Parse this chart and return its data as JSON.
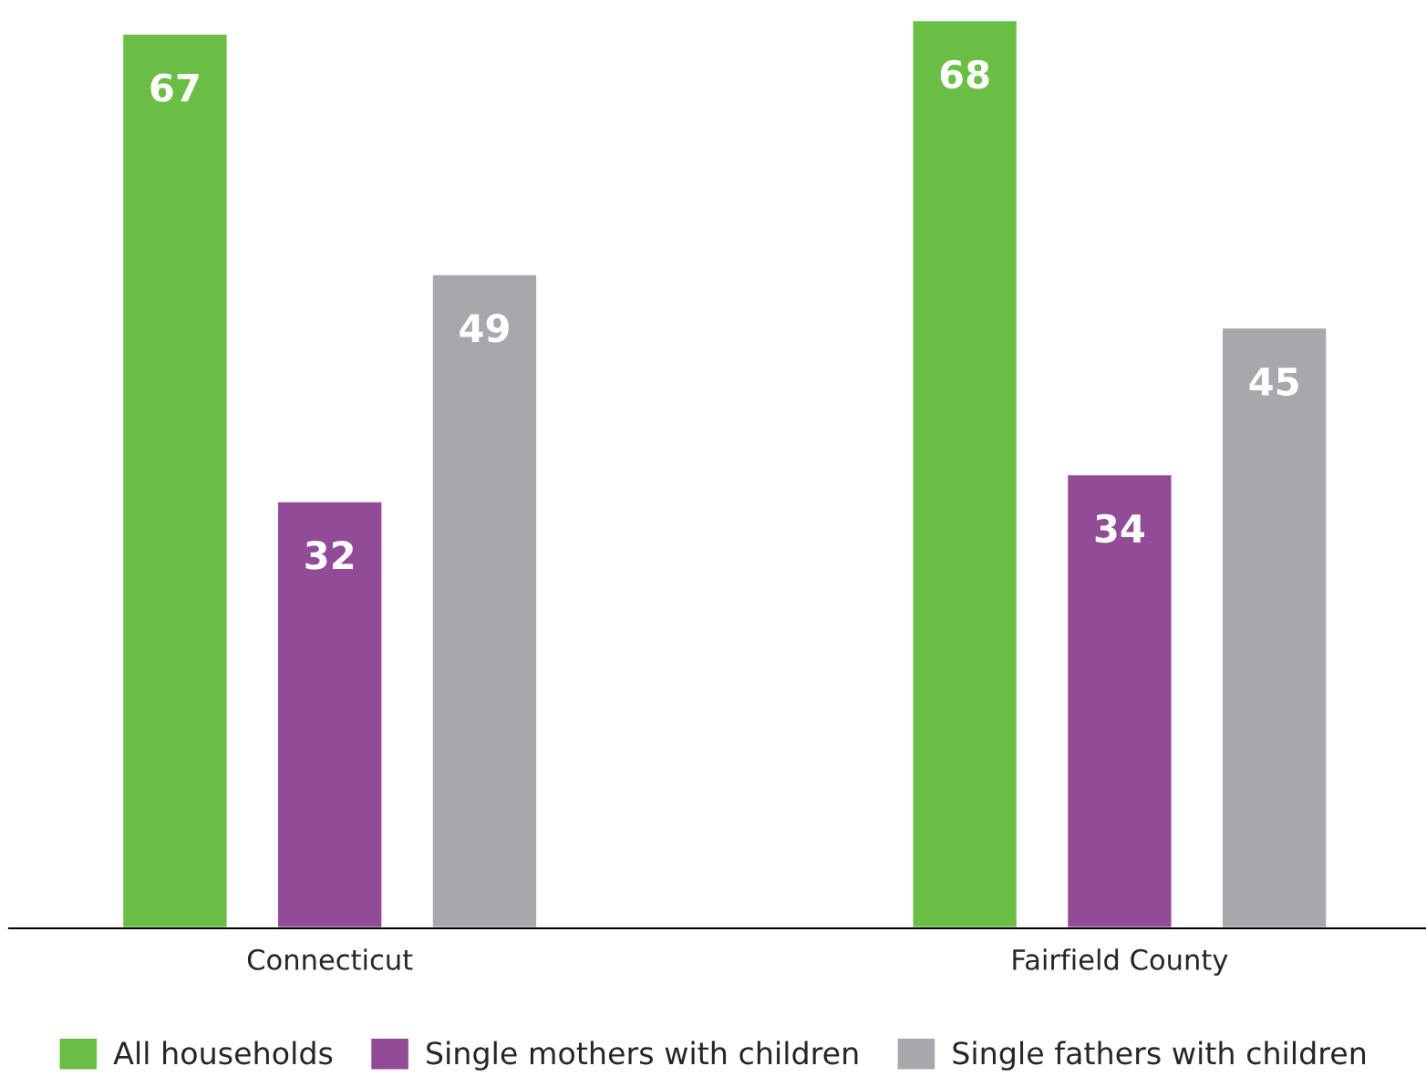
{
  "chart_data": {
    "type": "bar",
    "categories": [
      "Connecticut",
      "Fairfield County"
    ],
    "series": [
      {
        "name": "All households",
        "color": "#6abd45",
        "values": [
          67,
          68
        ]
      },
      {
        "name": "Single mothers with children",
        "color": "#924b97",
        "values": [
          32,
          34
        ]
      },
      {
        "name": "Single fathers with children",
        "color": "#a6a8ab",
        "values": [
          49,
          45
        ]
      }
    ],
    "data_labels": true,
    "legend": "bottom",
    "grid": false,
    "tick_labels": "x"
  }
}
